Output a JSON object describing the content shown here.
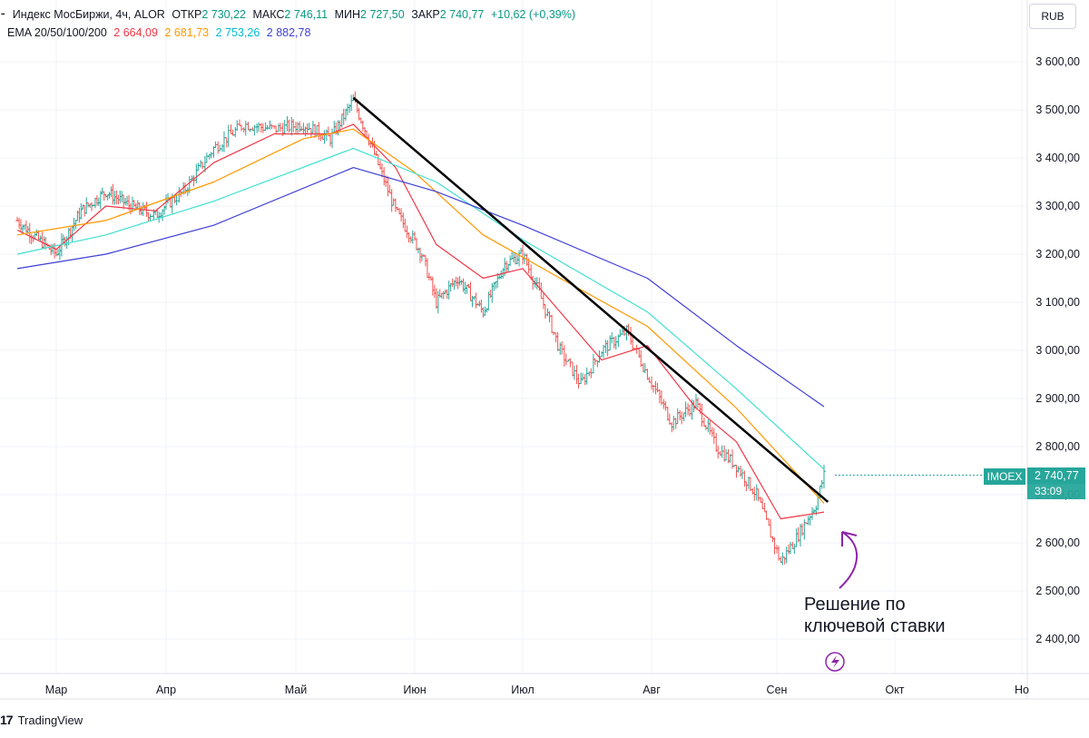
{
  "legend": {
    "title": "Индекс МосБиржи, 4ч, ALOR",
    "open_label": "ОТКР",
    "open": "2 730,22",
    "high_label": "МАКС",
    "high": "2 746,11",
    "low_label": "МИН",
    "low": "2 727,50",
    "close_label": "ЗАКР",
    "close": "2 740,77",
    "change": "+10,62 (+0,39%)",
    "ema_label": "EMA 20/50/100/200",
    "ema20": "2 664,09",
    "ema50": "2 681,73",
    "ema100": "2 753,26",
    "ema200": "2 882,78"
  },
  "currency": "RUB",
  "last_price": {
    "symbol": "IMOEX",
    "price": "2 740,77",
    "countdown": "33:09"
  },
  "annotation": {
    "line1": "Решение по",
    "line2": "ключевой ставки"
  },
  "branding": "TradingView",
  "colors": {
    "up": "#26a69a",
    "down": "#ef5350",
    "ema20": "#f23645",
    "ema50": "#ff9800",
    "ema100": "#40e0d0",
    "ema200": "#3f3fd6",
    "trendline": "#000000",
    "arrow": "#8e24aa"
  },
  "chart_data": {
    "type": "line",
    "instrument": "IMOEX",
    "timeframe": "4ч",
    "ylim": [
      2350,
      3680
    ],
    "y_ticks": [
      "3 600,00",
      "3 500,00",
      "3 400,00",
      "3 300,00",
      "3 200,00",
      "3 100,00",
      "3 000,00",
      "2 900,00",
      "2 800,00",
      "2 700,00",
      "2 600,00",
      "2 500,00",
      "2 400,00"
    ],
    "x_ticks": [
      "Мар",
      "Апр",
      "Май",
      "Июн",
      "Июл",
      "Авг",
      "Сен",
      "Окт",
      "Но"
    ],
    "x_tick_values": [
      "2024-03-01",
      "2024-04-01",
      "2024-05-01",
      "2024-06-01",
      "2024-07-01",
      "2024-08-01",
      "2024-09-01",
      "2024-10-01",
      "2024-11-01"
    ],
    "xlim": [
      "2024-02-19",
      "2024-11-01"
    ],
    "series": [
      {
        "name": "Индекс МосБиржи",
        "values_approx": [
          [
            "2024-02-19",
            3270
          ],
          [
            "2024-02-25",
            3230
          ],
          [
            "2024-03-01",
            3200
          ],
          [
            "2024-03-08",
            3290
          ],
          [
            "2024-03-15",
            3330
          ],
          [
            "2024-03-22",
            3300
          ],
          [
            "2024-03-29",
            3280
          ],
          [
            "2024-04-05",
            3330
          ],
          [
            "2024-04-12",
            3420
          ],
          [
            "2024-04-19",
            3470
          ],
          [
            "2024-04-26",
            3460
          ],
          [
            "2024-05-03",
            3470
          ],
          [
            "2024-05-10",
            3440
          ],
          [
            "2024-05-16",
            3520
          ],
          [
            "2024-05-20",
            3440
          ],
          [
            "2024-05-27",
            3290
          ],
          [
            "2024-06-03",
            3200
          ],
          [
            "2024-06-07",
            3100
          ],
          [
            "2024-06-13",
            3150
          ],
          [
            "2024-06-20",
            3080
          ],
          [
            "2024-06-26",
            3180
          ],
          [
            "2024-07-01",
            3200
          ],
          [
            "2024-07-05",
            3120
          ],
          [
            "2024-07-10",
            3000
          ],
          [
            "2024-07-15",
            2930
          ],
          [
            "2024-07-20",
            3000
          ],
          [
            "2024-07-26",
            3040
          ],
          [
            "2024-07-31",
            2950
          ],
          [
            "2024-08-06",
            2850
          ],
          [
            "2024-08-12",
            2890
          ],
          [
            "2024-08-17",
            2800
          ],
          [
            "2024-08-22",
            2760
          ],
          [
            "2024-08-27",
            2700
          ],
          [
            "2024-09-02",
            2560
          ],
          [
            "2024-09-06",
            2610
          ],
          [
            "2024-09-11",
            2680
          ],
          [
            "2024-09-13",
            2741
          ]
        ]
      }
    ],
    "ema_lines": [
      {
        "name": "EMA 20",
        "last": 2664.09,
        "values_approx": [
          [
            "2024-02-19",
            3250
          ],
          [
            "2024-03-01",
            3210
          ],
          [
            "2024-03-15",
            3300
          ],
          [
            "2024-03-29",
            3290
          ],
          [
            "2024-04-12",
            3390
          ],
          [
            "2024-04-26",
            3450
          ],
          [
            "2024-05-10",
            3450
          ],
          [
            "2024-05-16",
            3470
          ],
          [
            "2024-05-27",
            3380
          ],
          [
            "2024-06-07",
            3220
          ],
          [
            "2024-06-20",
            3150
          ],
          [
            "2024-07-01",
            3170
          ],
          [
            "2024-07-10",
            3080
          ],
          [
            "2024-07-20",
            2980
          ],
          [
            "2024-07-31",
            3010
          ],
          [
            "2024-08-12",
            2880
          ],
          [
            "2024-08-22",
            2810
          ],
          [
            "2024-09-02",
            2650
          ],
          [
            "2024-09-13",
            2664
          ]
        ]
      },
      {
        "name": "EMA 50",
        "last": 2681.73,
        "values_approx": [
          [
            "2024-02-19",
            3240
          ],
          [
            "2024-03-15",
            3270
          ],
          [
            "2024-04-12",
            3350
          ],
          [
            "2024-05-03",
            3440
          ],
          [
            "2024-05-16",
            3460
          ],
          [
            "2024-06-01",
            3370
          ],
          [
            "2024-06-20",
            3240
          ],
          [
            "2024-07-10",
            3150
          ],
          [
            "2024-07-31",
            3050
          ],
          [
            "2024-08-22",
            2880
          ],
          [
            "2024-09-13",
            2682
          ]
        ]
      },
      {
        "name": "EMA 100",
        "last": 2753.26,
        "values_approx": [
          [
            "2024-02-19",
            3200
          ],
          [
            "2024-03-15",
            3240
          ],
          [
            "2024-04-12",
            3310
          ],
          [
            "2024-05-16",
            3420
          ],
          [
            "2024-06-07",
            3350
          ],
          [
            "2024-07-01",
            3230
          ],
          [
            "2024-07-31",
            3080
          ],
          [
            "2024-08-22",
            2920
          ],
          [
            "2024-09-13",
            2753
          ]
        ]
      },
      {
        "name": "EMA 200",
        "last": 2882.78,
        "values_approx": [
          [
            "2024-02-19",
            3170
          ],
          [
            "2024-03-15",
            3200
          ],
          [
            "2024-04-12",
            3260
          ],
          [
            "2024-05-16",
            3380
          ],
          [
            "2024-06-07",
            3330
          ],
          [
            "2024-07-01",
            3260
          ],
          [
            "2024-07-31",
            3150
          ],
          [
            "2024-08-22",
            3010
          ],
          [
            "2024-09-13",
            2883
          ]
        ]
      }
    ],
    "trendline": {
      "from": [
        "2024-05-16",
        3525
      ],
      "to": [
        "2024-09-14",
        2685
      ]
    },
    "grid": true
  }
}
